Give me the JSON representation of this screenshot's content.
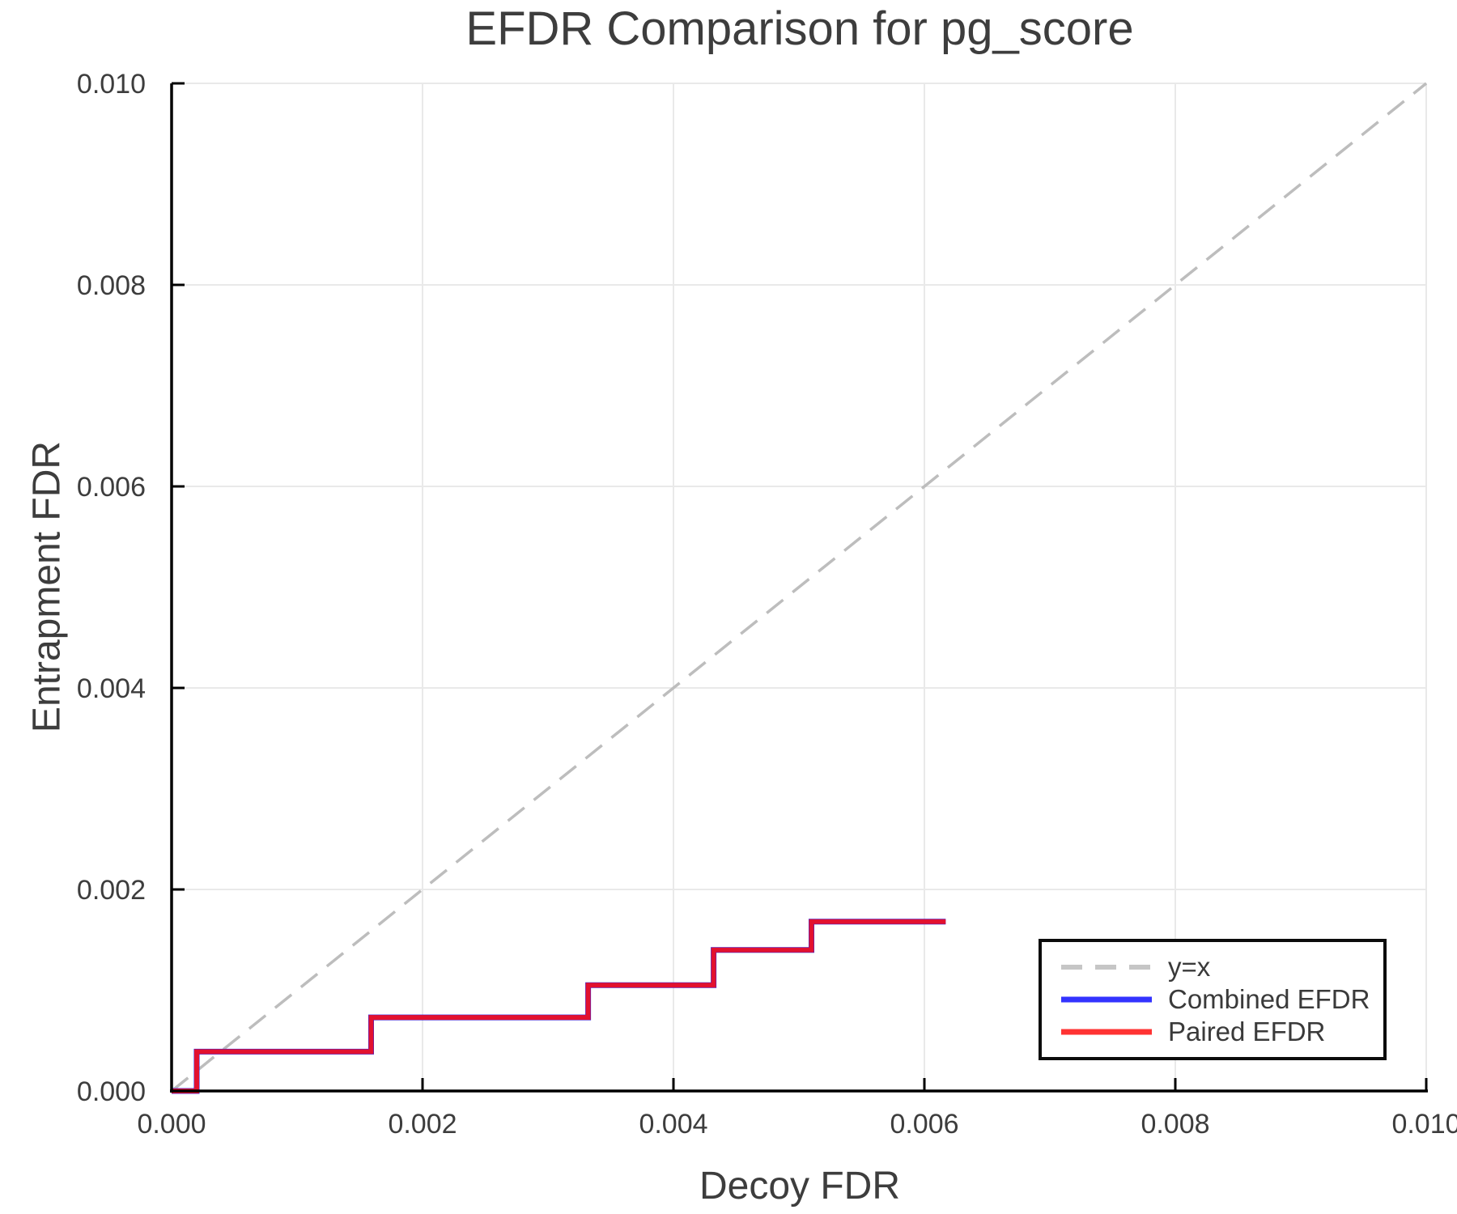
{
  "title": "EFDR Comparison for pg_score",
  "colors": {
    "background": "#ffffff",
    "grid": "#e9e9e9",
    "spine": "#000000",
    "tick_label": "#3d3d3d",
    "title_text": "#3d3d3d",
    "axis_label_text": "#3d3d3d",
    "legend_border": "#0c0c0c"
  },
  "chart_data": {
    "type": "line",
    "title": "EFDR Comparison for pg_score",
    "xlabel": "Decoy FDR",
    "ylabel": "Entrapment FDR",
    "xlim": [
      0.0,
      0.01
    ],
    "ylim": [
      0.0,
      0.01
    ],
    "grid": true,
    "xticks": {
      "values": [
        0.0,
        0.002,
        0.004,
        0.006,
        0.008,
        0.01
      ],
      "labels": [
        "0.000",
        "0.002",
        "0.004",
        "0.006",
        "0.008",
        "0.010"
      ]
    },
    "yticks": {
      "values": [
        0.0,
        0.002,
        0.004,
        0.006,
        0.008,
        0.01
      ],
      "labels": [
        "0.000",
        "0.002",
        "0.004",
        "0.006",
        "0.008",
        "0.010"
      ]
    },
    "legend_position": "bottom-right",
    "series": [
      {
        "name": "y=x",
        "line_style": "dashed",
        "color": "#bdbdbd",
        "legend_color": "#c6c6c6",
        "width": 3.5,
        "x": [
          0.0,
          0.01
        ],
        "y": [
          0.0,
          0.01
        ]
      },
      {
        "name": "Combined EFDR",
        "line_style": "solid",
        "color": "#2222ee",
        "legend_color": "#3333ff",
        "width": 7,
        "x": [
          0.0,
          0.0002,
          0.0002,
          0.00159,
          0.00159,
          0.00332,
          0.00332,
          0.00432,
          0.00432,
          0.0051,
          0.0051,
          0.00617
        ],
        "y": [
          0.0,
          0.0,
          0.00039,
          0.00039,
          0.00073,
          0.00073,
          0.00105,
          0.00105,
          0.0014,
          0.0014,
          0.00168,
          0.00168
        ]
      },
      {
        "name": "Paired EFDR",
        "line_style": "solid",
        "color": "#e2112f",
        "legend_color": "#ff3333",
        "width": 6,
        "x": [
          0.0,
          0.0002,
          0.0002,
          0.00159,
          0.00159,
          0.00332,
          0.00332,
          0.00432,
          0.00432,
          0.0051,
          0.0051,
          0.00617
        ],
        "y": [
          0.0,
          0.0,
          0.00039,
          0.00039,
          0.00073,
          0.00073,
          0.00105,
          0.00105,
          0.0014,
          0.0014,
          0.00168,
          0.00168
        ]
      }
    ]
  }
}
